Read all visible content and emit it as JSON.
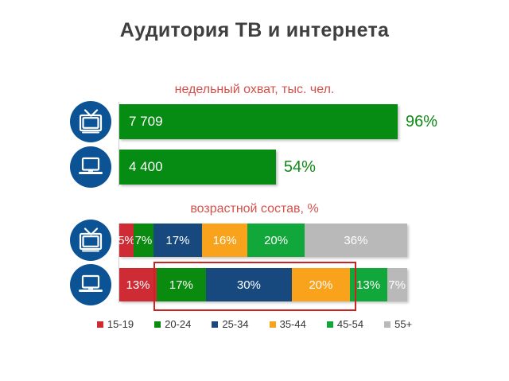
{
  "title": "Аудитория ТВ и интернета",
  "colors": {
    "title_text": "#3F3F3F",
    "chart_subtitle_text": "#D6504A",
    "bar_green": "#068C13",
    "percent_label_green": "#0E8A14",
    "icon_circle_blue": "#0B5394",
    "highlight_border": "#CC2222",
    "axis_line": "#CFCFCF",
    "legend_text": "#333333"
  },
  "chart_data": [
    {
      "type": "bar",
      "orientation": "horizontal",
      "title": "недельный охват, тыс. чел.",
      "categories": [
        "ТВ",
        "интернет"
      ],
      "icons": [
        "tv-icon",
        "laptop-icon"
      ],
      "values": [
        7709,
        4400
      ],
      "value_labels": [
        "7 709",
        "4 400"
      ],
      "percents": [
        96,
        54
      ],
      "percent_labels": [
        "96%",
        "54%"
      ],
      "bar_color": "#068C13",
      "xlim": [
        0,
        100
      ],
      "grid": false,
      "legend_position": "none"
    },
    {
      "type": "stacked-bar",
      "orientation": "horizontal",
      "title": "возрастной состав, %",
      "categories": [
        "ТВ",
        "интернет"
      ],
      "icons": [
        "tv-icon",
        "laptop-icon"
      ],
      "groups": [
        "15-19",
        "20-24",
        "25-34",
        "35-44",
        "45-54",
        "55+"
      ],
      "group_colors": [
        "#CF2B34",
        "#0B8A10",
        "#17497E",
        "#F9A21B",
        "#12A73B",
        "#B9B9B9"
      ],
      "series_rows": [
        {
          "category": "ТВ",
          "values": [
            5,
            7,
            17,
            16,
            20,
            36
          ],
          "labels": [
            "5%",
            "7%",
            "17%",
            "16%",
            "20%",
            "36%"
          ]
        },
        {
          "category": "интернет",
          "values": [
            13,
            17,
            30,
            20,
            13,
            7
          ],
          "labels": [
            "13%",
            "17%",
            "30%",
            "20%",
            "13%",
            "7%"
          ],
          "highlight_segments": [
            1,
            3
          ]
        }
      ],
      "grid": false,
      "legend_position": "bottom"
    }
  ],
  "legend": {
    "items": [
      {
        "label": "15-19",
        "color": "#CF2B34"
      },
      {
        "label": "20-24",
        "color": "#0B8A10"
      },
      {
        "label": "25-34",
        "color": "#17497E"
      },
      {
        "label": "35-44",
        "color": "#F9A21B"
      },
      {
        "label": "45-54",
        "color": "#12A73B"
      },
      {
        "label": "55+",
        "color": "#B9B9B9"
      }
    ]
  }
}
